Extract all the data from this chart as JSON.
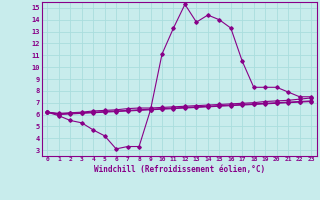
{
  "xlabel": "Windchill (Refroidissement éolien,°C)",
  "xlim": [
    -0.5,
    23.5
  ],
  "ylim": [
    2.5,
    15.5
  ],
  "xticks": [
    0,
    1,
    2,
    3,
    4,
    5,
    6,
    7,
    8,
    9,
    10,
    11,
    12,
    13,
    14,
    15,
    16,
    17,
    18,
    19,
    20,
    21,
    22,
    23
  ],
  "yticks": [
    3,
    4,
    5,
    6,
    7,
    8,
    9,
    10,
    11,
    12,
    13,
    14,
    15
  ],
  "bg_color": "#c8ecec",
  "line_color": "#880088",
  "grid_color": "#aadddd",
  "line1_y": [
    6.2,
    5.9,
    5.5,
    5.3,
    4.7,
    4.2,
    3.1,
    3.3,
    3.3,
    6.4,
    11.1,
    13.3,
    15.3,
    13.8,
    14.4,
    14.0,
    13.3,
    10.5,
    8.3,
    8.3,
    8.3,
    7.9,
    7.5,
    7.5
  ],
  "line2_y": [
    6.2,
    6.1,
    6.15,
    6.2,
    6.3,
    6.35,
    6.4,
    6.5,
    6.55,
    6.55,
    6.6,
    6.65,
    6.7,
    6.75,
    6.8,
    6.85,
    6.9,
    6.95,
    7.0,
    7.1,
    7.15,
    7.2,
    7.3,
    7.4
  ],
  "line3_y": [
    6.2,
    6.05,
    6.1,
    6.15,
    6.2,
    6.25,
    6.3,
    6.35,
    6.4,
    6.45,
    6.5,
    6.55,
    6.6,
    6.65,
    6.7,
    6.75,
    6.8,
    6.85,
    6.9,
    6.95,
    7.0,
    7.05,
    7.1,
    7.15
  ],
  "line4_y": [
    6.2,
    6.0,
    6.05,
    6.1,
    6.15,
    6.2,
    6.25,
    6.3,
    6.35,
    6.4,
    6.45,
    6.5,
    6.55,
    6.6,
    6.65,
    6.7,
    6.75,
    6.8,
    6.85,
    6.9,
    6.95,
    7.0,
    7.05,
    7.1
  ]
}
